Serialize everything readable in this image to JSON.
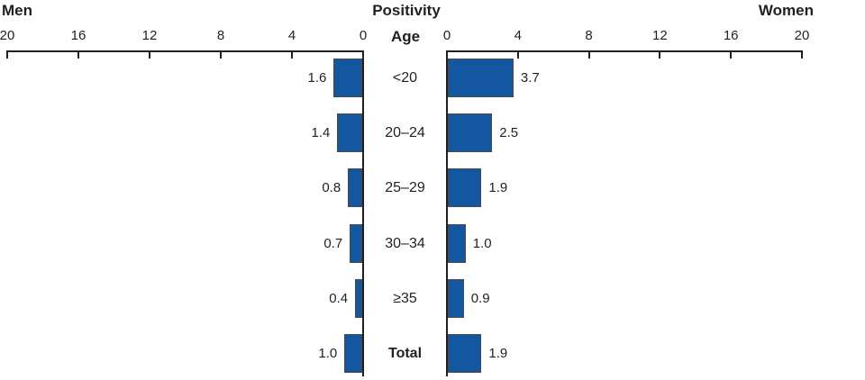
{
  "header": {
    "left": "Men",
    "title": "Positivity",
    "right": "Women",
    "age": "Age"
  },
  "axis": {
    "left_ticks": [
      "20",
      "16",
      "12",
      "8",
      "4",
      "0"
    ],
    "right_ticks": [
      "0",
      "4",
      "8",
      "12",
      "16",
      "20"
    ],
    "max": 20
  },
  "rows": [
    {
      "age": "<20",
      "men": 1.6,
      "women": 3.7,
      "men_label": "1.6",
      "women_label": "3.7",
      "bold": false
    },
    {
      "age": "20–24",
      "men": 1.4,
      "women": 2.5,
      "men_label": "1.4",
      "women_label": "2.5",
      "bold": false
    },
    {
      "age": "25–29",
      "men": 0.8,
      "women": 1.9,
      "men_label": "0.8",
      "women_label": "1.9",
      "bold": false
    },
    {
      "age": "30–34",
      "men": 0.7,
      "women": 1.0,
      "men_label": "0.7",
      "women_label": "1.0",
      "bold": false
    },
    {
      "age": "≥35",
      "men": 0.4,
      "women": 0.9,
      "men_label": "0.4",
      "women_label": "0.9",
      "bold": false
    },
    {
      "age": "Total",
      "men": 1.0,
      "women": 1.9,
      "men_label": "1.0",
      "women_label": "1.9",
      "bold": true
    }
  ],
  "colors": {
    "bar_fill": "#1257a0",
    "bar_border": "#4a4a4c",
    "axis": "#231f20",
    "text": "#231f20"
  },
  "chart_data": {
    "type": "bar",
    "variant": "back-to-back horizontal (population-pyramid / butterfly)",
    "title": "Positivity",
    "category_axis_label": "Age",
    "categories": [
      "<20",
      "20–24",
      "25–29",
      "30–34",
      "≥35",
      "Total"
    ],
    "series": [
      {
        "name": "Men",
        "side": "left",
        "values": [
          1.6,
          1.4,
          0.8,
          0.7,
          0.4,
          1.0
        ]
      },
      {
        "name": "Women",
        "side": "right",
        "values": [
          3.7,
          2.5,
          1.9,
          1.0,
          0.9,
          1.9
        ]
      }
    ],
    "axis_range": [
      0,
      20
    ],
    "tick_values": [
      0,
      4,
      8,
      12,
      16,
      20
    ],
    "data_labels": "numeric value at outer end of every bar",
    "grid": false,
    "legend": "none (side titles Men / Women above each half)"
  }
}
